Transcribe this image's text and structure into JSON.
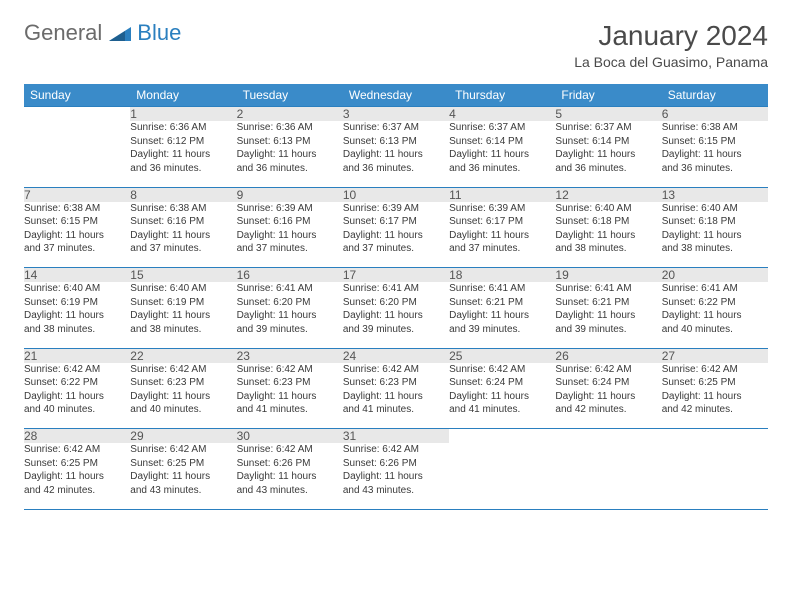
{
  "logo": {
    "word1": "General",
    "word2": "Blue"
  },
  "title": {
    "month": "January 2024",
    "location": "La Boca del Guasimo, Panama"
  },
  "colors": {
    "header_bg": "#3a8bc9",
    "header_text": "#ffffff",
    "border": "#2a7fbf",
    "daynum_bg": "#e8e8e8",
    "body_text": "#3a3a3a",
    "logo_grey": "#6b6b6b",
    "logo_blue": "#2a7fbf"
  },
  "weekdays": [
    "Sunday",
    "Monday",
    "Tuesday",
    "Wednesday",
    "Thursday",
    "Friday",
    "Saturday"
  ],
  "weeks": [
    [
      {
        "num": "",
        "sunrise": "",
        "sunset": "",
        "daylight1": "",
        "daylight2": ""
      },
      {
        "num": "1",
        "sunrise": "Sunrise: 6:36 AM",
        "sunset": "Sunset: 6:12 PM",
        "daylight1": "Daylight: 11 hours",
        "daylight2": "and 36 minutes."
      },
      {
        "num": "2",
        "sunrise": "Sunrise: 6:36 AM",
        "sunset": "Sunset: 6:13 PM",
        "daylight1": "Daylight: 11 hours",
        "daylight2": "and 36 minutes."
      },
      {
        "num": "3",
        "sunrise": "Sunrise: 6:37 AM",
        "sunset": "Sunset: 6:13 PM",
        "daylight1": "Daylight: 11 hours",
        "daylight2": "and 36 minutes."
      },
      {
        "num": "4",
        "sunrise": "Sunrise: 6:37 AM",
        "sunset": "Sunset: 6:14 PM",
        "daylight1": "Daylight: 11 hours",
        "daylight2": "and 36 minutes."
      },
      {
        "num": "5",
        "sunrise": "Sunrise: 6:37 AM",
        "sunset": "Sunset: 6:14 PM",
        "daylight1": "Daylight: 11 hours",
        "daylight2": "and 36 minutes."
      },
      {
        "num": "6",
        "sunrise": "Sunrise: 6:38 AM",
        "sunset": "Sunset: 6:15 PM",
        "daylight1": "Daylight: 11 hours",
        "daylight2": "and 36 minutes."
      }
    ],
    [
      {
        "num": "7",
        "sunrise": "Sunrise: 6:38 AM",
        "sunset": "Sunset: 6:15 PM",
        "daylight1": "Daylight: 11 hours",
        "daylight2": "and 37 minutes."
      },
      {
        "num": "8",
        "sunrise": "Sunrise: 6:38 AM",
        "sunset": "Sunset: 6:16 PM",
        "daylight1": "Daylight: 11 hours",
        "daylight2": "and 37 minutes."
      },
      {
        "num": "9",
        "sunrise": "Sunrise: 6:39 AM",
        "sunset": "Sunset: 6:16 PM",
        "daylight1": "Daylight: 11 hours",
        "daylight2": "and 37 minutes."
      },
      {
        "num": "10",
        "sunrise": "Sunrise: 6:39 AM",
        "sunset": "Sunset: 6:17 PM",
        "daylight1": "Daylight: 11 hours",
        "daylight2": "and 37 minutes."
      },
      {
        "num": "11",
        "sunrise": "Sunrise: 6:39 AM",
        "sunset": "Sunset: 6:17 PM",
        "daylight1": "Daylight: 11 hours",
        "daylight2": "and 37 minutes."
      },
      {
        "num": "12",
        "sunrise": "Sunrise: 6:40 AM",
        "sunset": "Sunset: 6:18 PM",
        "daylight1": "Daylight: 11 hours",
        "daylight2": "and 38 minutes."
      },
      {
        "num": "13",
        "sunrise": "Sunrise: 6:40 AM",
        "sunset": "Sunset: 6:18 PM",
        "daylight1": "Daylight: 11 hours",
        "daylight2": "and 38 minutes."
      }
    ],
    [
      {
        "num": "14",
        "sunrise": "Sunrise: 6:40 AM",
        "sunset": "Sunset: 6:19 PM",
        "daylight1": "Daylight: 11 hours",
        "daylight2": "and 38 minutes."
      },
      {
        "num": "15",
        "sunrise": "Sunrise: 6:40 AM",
        "sunset": "Sunset: 6:19 PM",
        "daylight1": "Daylight: 11 hours",
        "daylight2": "and 38 minutes."
      },
      {
        "num": "16",
        "sunrise": "Sunrise: 6:41 AM",
        "sunset": "Sunset: 6:20 PM",
        "daylight1": "Daylight: 11 hours",
        "daylight2": "and 39 minutes."
      },
      {
        "num": "17",
        "sunrise": "Sunrise: 6:41 AM",
        "sunset": "Sunset: 6:20 PM",
        "daylight1": "Daylight: 11 hours",
        "daylight2": "and 39 minutes."
      },
      {
        "num": "18",
        "sunrise": "Sunrise: 6:41 AM",
        "sunset": "Sunset: 6:21 PM",
        "daylight1": "Daylight: 11 hours",
        "daylight2": "and 39 minutes."
      },
      {
        "num": "19",
        "sunrise": "Sunrise: 6:41 AM",
        "sunset": "Sunset: 6:21 PM",
        "daylight1": "Daylight: 11 hours",
        "daylight2": "and 39 minutes."
      },
      {
        "num": "20",
        "sunrise": "Sunrise: 6:41 AM",
        "sunset": "Sunset: 6:22 PM",
        "daylight1": "Daylight: 11 hours",
        "daylight2": "and 40 minutes."
      }
    ],
    [
      {
        "num": "21",
        "sunrise": "Sunrise: 6:42 AM",
        "sunset": "Sunset: 6:22 PM",
        "daylight1": "Daylight: 11 hours",
        "daylight2": "and 40 minutes."
      },
      {
        "num": "22",
        "sunrise": "Sunrise: 6:42 AM",
        "sunset": "Sunset: 6:23 PM",
        "daylight1": "Daylight: 11 hours",
        "daylight2": "and 40 minutes."
      },
      {
        "num": "23",
        "sunrise": "Sunrise: 6:42 AM",
        "sunset": "Sunset: 6:23 PM",
        "daylight1": "Daylight: 11 hours",
        "daylight2": "and 41 minutes."
      },
      {
        "num": "24",
        "sunrise": "Sunrise: 6:42 AM",
        "sunset": "Sunset: 6:23 PM",
        "daylight1": "Daylight: 11 hours",
        "daylight2": "and 41 minutes."
      },
      {
        "num": "25",
        "sunrise": "Sunrise: 6:42 AM",
        "sunset": "Sunset: 6:24 PM",
        "daylight1": "Daylight: 11 hours",
        "daylight2": "and 41 minutes."
      },
      {
        "num": "26",
        "sunrise": "Sunrise: 6:42 AM",
        "sunset": "Sunset: 6:24 PM",
        "daylight1": "Daylight: 11 hours",
        "daylight2": "and 42 minutes."
      },
      {
        "num": "27",
        "sunrise": "Sunrise: 6:42 AM",
        "sunset": "Sunset: 6:25 PM",
        "daylight1": "Daylight: 11 hours",
        "daylight2": "and 42 minutes."
      }
    ],
    [
      {
        "num": "28",
        "sunrise": "Sunrise: 6:42 AM",
        "sunset": "Sunset: 6:25 PM",
        "daylight1": "Daylight: 11 hours",
        "daylight2": "and 42 minutes."
      },
      {
        "num": "29",
        "sunrise": "Sunrise: 6:42 AM",
        "sunset": "Sunset: 6:25 PM",
        "daylight1": "Daylight: 11 hours",
        "daylight2": "and 43 minutes."
      },
      {
        "num": "30",
        "sunrise": "Sunrise: 6:42 AM",
        "sunset": "Sunset: 6:26 PM",
        "daylight1": "Daylight: 11 hours",
        "daylight2": "and 43 minutes."
      },
      {
        "num": "31",
        "sunrise": "Sunrise: 6:42 AM",
        "sunset": "Sunset: 6:26 PM",
        "daylight1": "Daylight: 11 hours",
        "daylight2": "and 43 minutes."
      },
      {
        "num": "",
        "sunrise": "",
        "sunset": "",
        "daylight1": "",
        "daylight2": ""
      },
      {
        "num": "",
        "sunrise": "",
        "sunset": "",
        "daylight1": "",
        "daylight2": ""
      },
      {
        "num": "",
        "sunrise": "",
        "sunset": "",
        "daylight1": "",
        "daylight2": ""
      }
    ]
  ]
}
